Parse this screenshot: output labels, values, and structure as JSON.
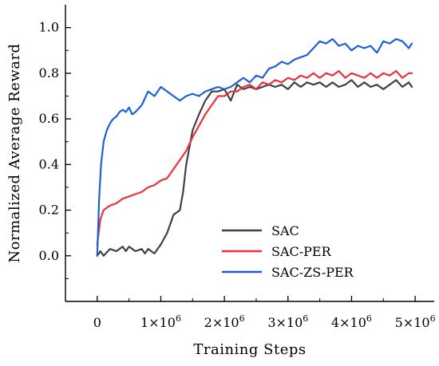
{
  "chart_data": {
    "type": "line",
    "xlabel": "Training Steps",
    "ylabel": "Normalized Average Reward",
    "xlim": [
      -0.5,
      5.3
    ],
    "ylim": [
      -0.2,
      1.1
    ],
    "x_unit": "×10^6 steps",
    "x_ticks": [
      {
        "value": 0,
        "label": "0",
        "exp": ""
      },
      {
        "value": 1,
        "label": "1×10",
        "exp": "6"
      },
      {
        "value": 2,
        "label": "2×10",
        "exp": "6"
      },
      {
        "value": 3,
        "label": "3×10",
        "exp": "6"
      },
      {
        "value": 4,
        "label": "4×10",
        "exp": "6"
      },
      {
        "value": 5,
        "label": "5×10",
        "exp": "6"
      }
    ],
    "y_ticks": [
      {
        "value": 0.0,
        "label": "0.0"
      },
      {
        "value": 0.2,
        "label": "0.2"
      },
      {
        "value": 0.4,
        "label": "0.4"
      },
      {
        "value": 0.6,
        "label": "0.6"
      },
      {
        "value": 0.8,
        "label": "0.8"
      },
      {
        "value": 1.0,
        "label": "1.0"
      }
    ],
    "grid": false,
    "legend": "bottom-right",
    "series": [
      {
        "name": "SAC",
        "color": "#404040",
        "x": [
          0,
          0.05,
          0.1,
          0.2,
          0.3,
          0.4,
          0.45,
          0.5,
          0.6,
          0.7,
          0.75,
          0.8,
          0.9,
          1.0,
          1.1,
          1.2,
          1.3,
          1.35,
          1.4,
          1.5,
          1.6,
          1.7,
          1.8,
          1.9,
          2.0,
          2.1,
          2.2,
          2.3,
          2.4,
          2.5,
          2.6,
          2.7,
          2.8,
          2.9,
          3.0,
          3.1,
          3.2,
          3.3,
          3.4,
          3.5,
          3.6,
          3.7,
          3.8,
          3.9,
          4.0,
          4.1,
          4.2,
          4.3,
          4.4,
          4.5,
          4.6,
          4.7,
          4.8,
          4.9,
          4.95
        ],
        "y": [
          0.0,
          0.02,
          0.0,
          0.03,
          0.02,
          0.04,
          0.02,
          0.04,
          0.02,
          0.03,
          0.01,
          0.03,
          0.01,
          0.05,
          0.1,
          0.18,
          0.2,
          0.28,
          0.4,
          0.55,
          0.62,
          0.68,
          0.72,
          0.72,
          0.73,
          0.68,
          0.75,
          0.73,
          0.74,
          0.73,
          0.74,
          0.75,
          0.74,
          0.75,
          0.73,
          0.76,
          0.74,
          0.76,
          0.75,
          0.76,
          0.74,
          0.76,
          0.74,
          0.75,
          0.77,
          0.74,
          0.76,
          0.74,
          0.75,
          0.73,
          0.75,
          0.77,
          0.74,
          0.76,
          0.74
        ]
      },
      {
        "name": "SAC-PER",
        "color": "#e8323a",
        "x": [
          0,
          0.05,
          0.1,
          0.2,
          0.3,
          0.4,
          0.5,
          0.6,
          0.7,
          0.8,
          0.9,
          1.0,
          1.1,
          1.2,
          1.3,
          1.4,
          1.5,
          1.6,
          1.7,
          1.8,
          1.9,
          2.0,
          2.1,
          2.2,
          2.3,
          2.4,
          2.5,
          2.6,
          2.7,
          2.8,
          2.9,
          3.0,
          3.1,
          3.2,
          3.3,
          3.4,
          3.5,
          3.6,
          3.7,
          3.8,
          3.9,
          4.0,
          4.1,
          4.2,
          4.3,
          4.4,
          4.5,
          4.6,
          4.7,
          4.8,
          4.9,
          4.95
        ],
        "y": [
          0.05,
          0.16,
          0.2,
          0.22,
          0.23,
          0.25,
          0.26,
          0.27,
          0.28,
          0.3,
          0.31,
          0.33,
          0.34,
          0.38,
          0.42,
          0.46,
          0.52,
          0.57,
          0.62,
          0.66,
          0.7,
          0.7,
          0.72,
          0.72,
          0.74,
          0.75,
          0.73,
          0.76,
          0.75,
          0.77,
          0.76,
          0.78,
          0.77,
          0.79,
          0.78,
          0.8,
          0.78,
          0.8,
          0.79,
          0.81,
          0.78,
          0.8,
          0.79,
          0.78,
          0.8,
          0.78,
          0.8,
          0.79,
          0.81,
          0.78,
          0.8,
          0.8
        ]
      },
      {
        "name": "SAC-ZS-PER",
        "color": "#1f5fd6",
        "x": [
          0,
          0.03,
          0.06,
          0.1,
          0.15,
          0.2,
          0.25,
          0.3,
          0.35,
          0.4,
          0.45,
          0.5,
          0.55,
          0.6,
          0.7,
          0.8,
          0.9,
          1.0,
          1.1,
          1.2,
          1.3,
          1.4,
          1.5,
          1.6,
          1.7,
          1.8,
          1.9,
          2.0,
          2.1,
          2.2,
          2.3,
          2.4,
          2.5,
          2.6,
          2.7,
          2.8,
          2.9,
          3.0,
          3.1,
          3.2,
          3.3,
          3.4,
          3.5,
          3.6,
          3.7,
          3.8,
          3.9,
          4.0,
          4.1,
          4.2,
          4.3,
          4.4,
          4.5,
          4.6,
          4.7,
          4.8,
          4.9,
          4.95
        ],
        "y": [
          0.0,
          0.25,
          0.4,
          0.5,
          0.55,
          0.58,
          0.6,
          0.61,
          0.63,
          0.64,
          0.63,
          0.65,
          0.62,
          0.63,
          0.66,
          0.72,
          0.7,
          0.74,
          0.72,
          0.7,
          0.68,
          0.7,
          0.71,
          0.7,
          0.72,
          0.73,
          0.74,
          0.73,
          0.74,
          0.76,
          0.78,
          0.76,
          0.79,
          0.78,
          0.82,
          0.83,
          0.85,
          0.84,
          0.86,
          0.87,
          0.88,
          0.91,
          0.94,
          0.93,
          0.95,
          0.92,
          0.93,
          0.9,
          0.92,
          0.91,
          0.92,
          0.89,
          0.94,
          0.93,
          0.95,
          0.94,
          0.91,
          0.93
        ]
      }
    ]
  }
}
